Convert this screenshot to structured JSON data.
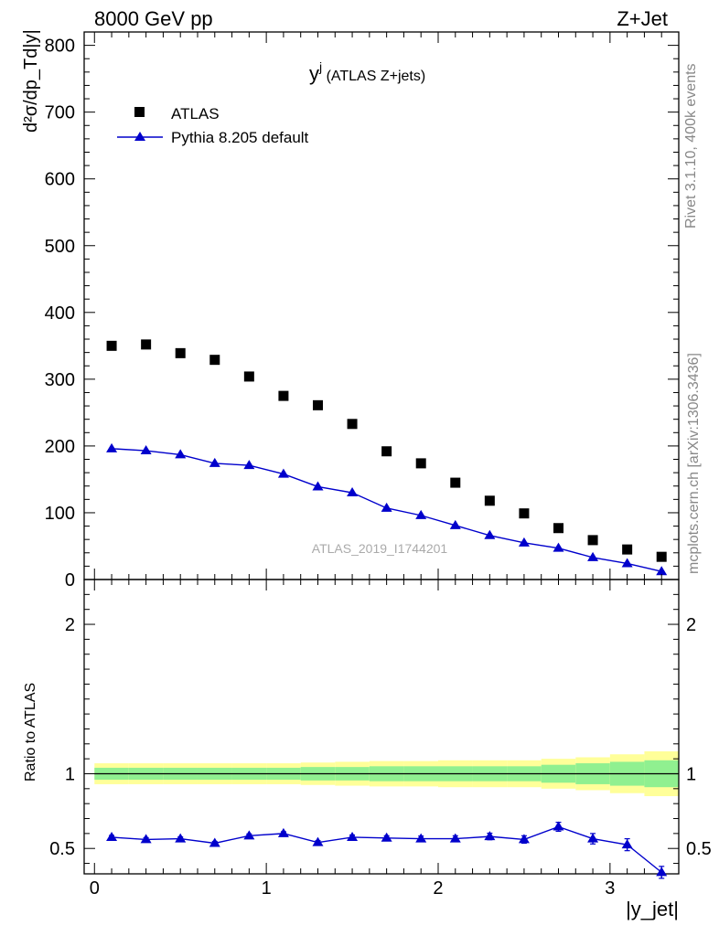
{
  "header": {
    "left_label": "8000 GeV pp",
    "right_label": "Z+Jet"
  },
  "side_labels": {
    "rivet": "Rivet 3.1.10,  400k events",
    "mcplots": "mcplots.cern.ch [arXiv:1306.3436]"
  },
  "watermark": "ATLAS_2019_I1744201",
  "colors": {
    "data": "#000000",
    "mc": "#0000cc",
    "band_inner": "#90f090",
    "band_outer": "#ffff99"
  },
  "chart_data": [
    {
      "type": "scatter",
      "panel": "main",
      "title": "y^j (ATLAS Z+jets)",
      "title_main": "y",
      "title_sup": "j",
      "title_rest": " (ATLAS Z+jets)",
      "ylabel": "d²σ/dp_Td|y|",
      "ylim": [
        0,
        820
      ],
      "yticks": [
        0,
        100,
        200,
        300,
        400,
        500,
        600,
        700,
        800
      ],
      "ytick_labels": [
        "0",
        "100",
        "200",
        "300",
        "400",
        "500",
        "600",
        "700",
        "800"
      ],
      "xlim": [
        -0.06,
        3.4
      ],
      "legend_position": "top-left",
      "x": [
        0.1,
        0.3,
        0.5,
        0.7,
        0.9,
        1.1,
        1.3,
        1.5,
        1.7,
        1.9,
        2.1,
        2.3,
        2.5,
        2.7,
        2.9,
        3.1,
        3.3
      ],
      "series": [
        {
          "name": "ATLAS",
          "marker": "square",
          "values": [
            350,
            352,
            339,
            329,
            304,
            275,
            261,
            233,
            192,
            174,
            145,
            118,
            99,
            77,
            59,
            45,
            34
          ]
        },
        {
          "name": "Pythia 8.205 default",
          "marker": "triangle-line",
          "values": [
            196,
            193,
            187,
            174,
            171,
            158,
            139,
            130,
            107,
            96,
            81,
            66,
            55,
            47,
            33,
            24,
            12
          ]
        }
      ]
    },
    {
      "type": "line",
      "panel": "ratio",
      "ylabel": "Ratio to ATLAS",
      "ylim": [
        0.33,
        2.3
      ],
      "yticks": [
        0.5,
        1,
        2
      ],
      "ytick_labels": [
        "0.5",
        "1",
        "2"
      ],
      "xlabel": "|y_jet|",
      "xlim": [
        -0.06,
        3.4
      ],
      "xticks": [
        0,
        1,
        2,
        3
      ],
      "xtick_labels": [
        "0",
        "1",
        "2",
        "3"
      ],
      "x": [
        0.1,
        0.3,
        0.5,
        0.7,
        0.9,
        1.1,
        1.3,
        1.5,
        1.7,
        1.9,
        2.1,
        2.3,
        2.5,
        2.7,
        2.9,
        3.1,
        3.3
      ],
      "values": [
        0.575,
        0.56,
        0.565,
        0.535,
        0.585,
        0.6,
        0.54,
        0.575,
        0.57,
        0.565,
        0.565,
        0.58,
        0.56,
        0.645,
        0.565,
        0.525,
        0.34
      ],
      "errors": [
        0.012,
        0.012,
        0.012,
        0.012,
        0.012,
        0.012,
        0.012,
        0.015,
        0.015,
        0.018,
        0.02,
        0.022,
        0.025,
        0.03,
        0.035,
        0.04,
        0.04
      ],
      "bin_edges": [
        0,
        0.2,
        0.4,
        0.6,
        0.8,
        1.0,
        1.2,
        1.4,
        1.6,
        1.8,
        2.0,
        2.2,
        2.4,
        2.6,
        2.8,
        3.0,
        3.2,
        3.4
      ],
      "band_inner_halfwidth": [
        0.04,
        0.04,
        0.04,
        0.04,
        0.04,
        0.04,
        0.045,
        0.045,
        0.05,
        0.05,
        0.05,
        0.05,
        0.05,
        0.06,
        0.07,
        0.08,
        0.09
      ],
      "band_outer_halfwidth": [
        0.07,
        0.07,
        0.07,
        0.07,
        0.07,
        0.07,
        0.075,
        0.08,
        0.085,
        0.085,
        0.09,
        0.09,
        0.09,
        0.1,
        0.11,
        0.13,
        0.15
      ]
    }
  ]
}
